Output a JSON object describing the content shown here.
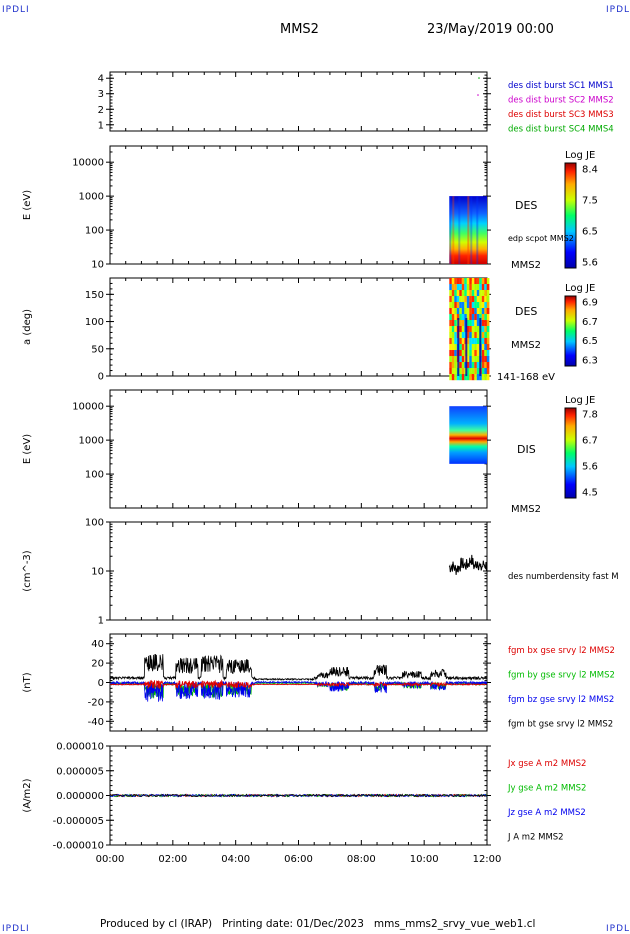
{
  "corner_label": "IPDLI",
  "header": {
    "spacecraft": "MMS2",
    "date": "23/May/2019 00:00"
  },
  "footer": "Produced by cl (IRAP)   Printing date: 01/Dec/2023   mms_mms2_srvy_vue_web1.cl",
  "chart_data": [
    {
      "type": "scatter",
      "panel": "spacecraft-locator",
      "ylabel": "",
      "yticks": [
        "1",
        "2",
        "3",
        "4"
      ],
      "ylim": [
        0.6,
        4.4
      ],
      "legend": [
        {
          "label": "des dist burst SC1 MMS1",
          "color": "#0000cc"
        },
        {
          "label": "des dist burst SC2 MMS2",
          "color": "#cc00cc"
        },
        {
          "label": "des dist burst SC3 MMS3",
          "color": "#dd0000"
        },
        {
          "label": "des dist burst SC4 MMS4",
          "color": "#00aa00"
        }
      ]
    },
    {
      "type": "heatmap",
      "panel": "des-energy-spectrogram",
      "ylabel": "E (eV)",
      "yticks": [
        "10",
        "100",
        "1000",
        "10000"
      ],
      "yscale": "log",
      "ylim": [
        10,
        30000
      ],
      "time_range_hours": [
        10.8,
        12.0
      ],
      "energy_range_eV": [
        10,
        1000
      ],
      "side_labels": [
        "DES",
        "edp scpot MMS2",
        "MMS2"
      ],
      "colorbar": {
        "title": "Log JE",
        "ticks": [
          "8.4",
          "7.5",
          "6.5",
          "5.6"
        ],
        "range": [
          5.6,
          8.4
        ]
      }
    },
    {
      "type": "heatmap",
      "panel": "des-pitch-angle",
      "ylabel": "a (deg)",
      "yticks": [
        "0",
        "50",
        "100",
        "150"
      ],
      "ylim": [
        0,
        180
      ],
      "time_range_hours": [
        10.8,
        12.0
      ],
      "side_labels": [
        "DES",
        "MMS2",
        "141-168 eV"
      ],
      "colorbar": {
        "title": "Log JE",
        "ticks": [
          "6.9",
          "6.7",
          "6.5",
          "6.3"
        ],
        "range": [
          6.3,
          6.9
        ]
      }
    },
    {
      "type": "heatmap",
      "panel": "dis-energy-spectrogram",
      "ylabel": "E (eV)",
      "yticks": [
        "100",
        "1000",
        "10000"
      ],
      "yscale": "log",
      "ylim": [
        10,
        30000
      ],
      "time_range_hours": [
        10.8,
        12.0
      ],
      "energy_range_eV": [
        200,
        10000
      ],
      "side_labels": [
        "DIS",
        "MMS2"
      ],
      "colorbar": {
        "title": "Log JE",
        "ticks": [
          "7.8",
          "6.7",
          "5.6",
          "4.5"
        ],
        "range": [
          4.5,
          7.8
        ]
      }
    },
    {
      "type": "line",
      "panel": "density",
      "ylabel": "(cm^-3)",
      "yticks": [
        "1",
        "10",
        "100"
      ],
      "yscale": "log",
      "ylim": [
        1,
        100
      ],
      "series": [
        {
          "name": "des numberdensity fast M",
          "color": "#000000",
          "x": [
            10.8,
            10.9,
            11.0,
            11.1,
            11.2,
            11.3,
            11.4,
            11.5,
            11.6,
            11.7,
            11.8,
            11.9,
            12.0
          ],
          "values": [
            12,
            13,
            11,
            12,
            15,
            13,
            14,
            18,
            12,
            16,
            11,
            14,
            13
          ]
        }
      ]
    },
    {
      "type": "line",
      "panel": "magnetic-field",
      "ylabel": "(nT)",
      "yticks": [
        "-40",
        "-20",
        "0",
        "20",
        "40"
      ],
      "ylim": [
        -50,
        50
      ],
      "series": [
        {
          "name": "fgm bx gse srvy l2 MMS2",
          "color": "#dd0000"
        },
        {
          "name": "fgm by gse srvy l2 MMS2",
          "color": "#00bb00"
        },
        {
          "name": "fgm bz gse srvy l2 MMS2",
          "color": "#0000ee"
        },
        {
          "name": "fgm bt gse srvy l2 MMS2",
          "color": "#000000"
        }
      ]
    },
    {
      "type": "line",
      "panel": "current-density",
      "ylabel": "(A/m2)",
      "yticks": [
        "-0.000010",
        "-0.000005",
        "0.000000",
        "0.000005",
        "0.000010"
      ],
      "ylim": [
        -1e-05,
        1e-05
      ],
      "series": [
        {
          "name": "Jx gse A m2 MMS2",
          "color": "#dd0000"
        },
        {
          "name": "Jy gse A m2 MMS2",
          "color": "#00bb00"
        },
        {
          "name": "Jz gse A m2 MMS2",
          "color": "#0000ee"
        },
        {
          "name": "J A m2 MMS2",
          "color": "#000000"
        }
      ]
    }
  ],
  "time_axis": {
    "ticks": [
      "00:00",
      "02:00",
      "04:00",
      "06:00",
      "08:00",
      "10:00",
      "12:00"
    ],
    "range_hours": [
      0,
      12
    ]
  }
}
